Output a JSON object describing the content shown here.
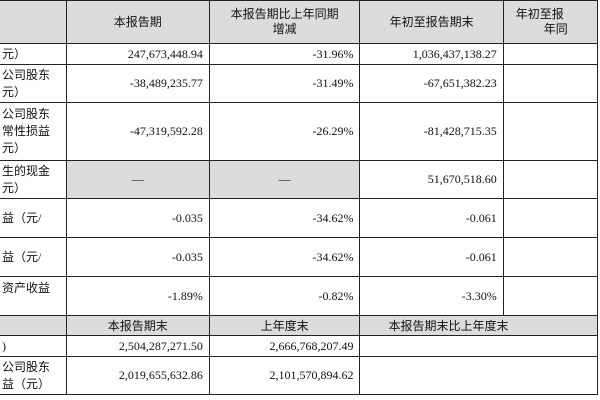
{
  "header": {
    "col1": "本报告期",
    "col2": [
      "本报告期比上年同期",
      "增减"
    ],
    "col3": "年初至报告期末",
    "col4": [
      "年初至报",
      "年同"
    ]
  },
  "rows": [
    {
      "label": [
        "元）"
      ],
      "current": "247,673,448.94",
      "change": "-31.96%",
      "ytd": "1,036,437,138.27"
    },
    {
      "label": [
        "公司股东",
        "元）"
      ],
      "current": "-38,489,235.77",
      "change": "-31.49%",
      "ytd": "-67,651,382.23"
    },
    {
      "label": [
        "公司股东",
        "常性损益",
        "元）"
      ],
      "current": "-47,319,592.28",
      "change": "-26.29%",
      "ytd": "-81,428,715.35"
    },
    {
      "label": [
        "生的现金",
        "元）"
      ],
      "current": "—",
      "change": "—",
      "ytd": "51,670,518.60"
    },
    {
      "label": [
        "益（元/"
      ],
      "current": "-0.035",
      "change": "-34.62%",
      "ytd": "-0.061"
    },
    {
      "label": [
        "益（元/"
      ],
      "current": "-0.035",
      "change": "-34.62%",
      "ytd": "-0.061"
    },
    {
      "label": [
        "资产收益"
      ],
      "current": "-1.89%",
      "change": "-0.82%",
      "ytd": "-3.30%"
    }
  ],
  "header2": {
    "col1": "本报告期末",
    "col2": "上年度末",
    "col3": "本报告期末比上年度末"
  },
  "rows2": [
    {
      "label": [
        ")"
      ],
      "current": "2,504,287,271.50",
      "prior": "2,666,768,207.49"
    },
    {
      "label": [
        "公司股东",
        "益（元）"
      ],
      "current": "2,019,655,632.86",
      "prior": "2,101,570,894.62"
    }
  ]
}
